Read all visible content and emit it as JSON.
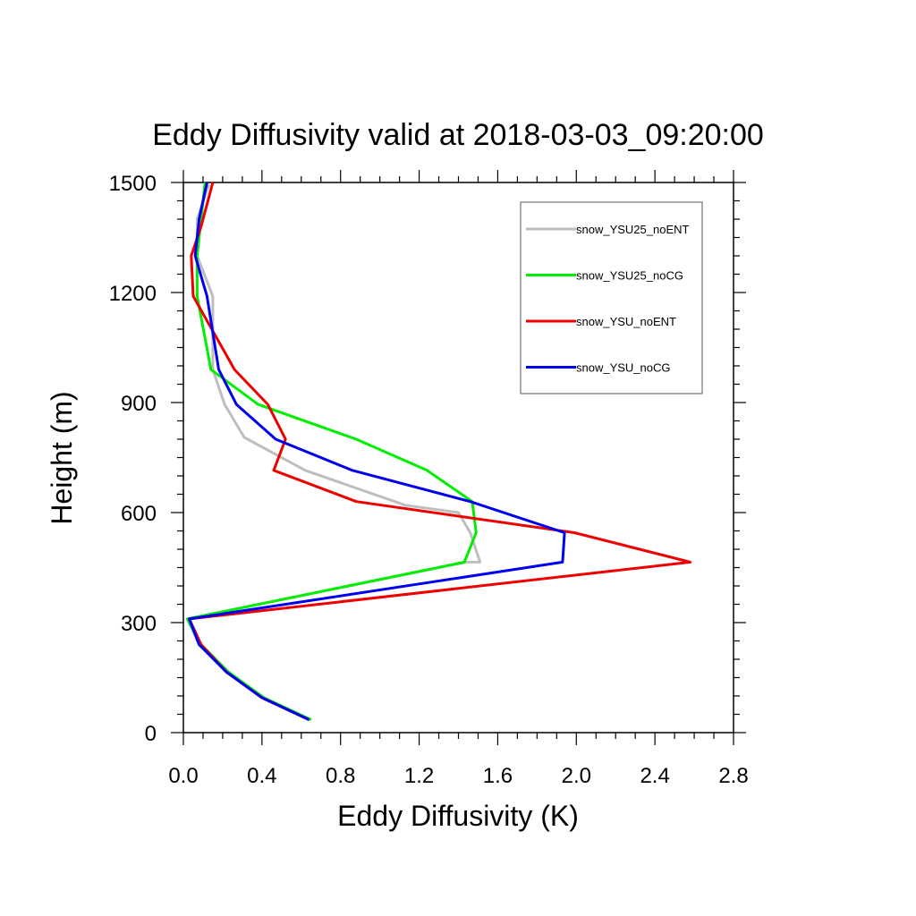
{
  "chart_data": {
    "type": "line",
    "title": "Eddy Diffusivity valid at 2018-03-03_09:20:00",
    "xlabel": "Eddy Diffusivity (K)",
    "ylabel": "Height (m)",
    "xlim": [
      0,
      2.8
    ],
    "ylim": [
      0,
      1500
    ],
    "xticks": [
      0.0,
      0.4,
      0.8,
      1.2,
      1.6,
      2.0,
      2.4,
      2.8
    ],
    "xtick_labels": [
      "0.0",
      "0.4",
      "0.8",
      "1.2",
      "1.6",
      "2.0",
      "2.4",
      "2.8"
    ],
    "yticks": [
      0,
      300,
      600,
      900,
      1200,
      1500
    ],
    "ytick_labels": [
      "0",
      "300",
      "600",
      "900",
      "1200",
      "1500"
    ],
    "grid": false,
    "legend_position": "top-right",
    "series": [
      {
        "name": "snow_YSU25_noENT",
        "color": "#bebebe",
        "points": [
          [
            0.64,
            35
          ],
          [
            0.4,
            95
          ],
          [
            0.22,
            165
          ],
          [
            0.08,
            240
          ],
          [
            0.02,
            310
          ],
          [
            1.44,
            465
          ],
          [
            1.51,
            465
          ],
          [
            1.46,
            545
          ],
          [
            1.4,
            600
          ],
          [
            1.13,
            620
          ],
          [
            0.62,
            715
          ],
          [
            0.31,
            805
          ],
          [
            0.21,
            895
          ],
          [
            0.15,
            990
          ],
          [
            0.15,
            1190
          ],
          [
            0.07,
            1300
          ],
          [
            0.07,
            1400
          ],
          [
            0.13,
            1495
          ]
        ]
      },
      {
        "name": "snow_YSU25_noCG",
        "color": "#00ee00",
        "points": [
          [
            0.65,
            35
          ],
          [
            0.41,
            95
          ],
          [
            0.23,
            165
          ],
          [
            0.09,
            240
          ],
          [
            0.02,
            310
          ],
          [
            1.43,
            465
          ],
          [
            1.49,
            545
          ],
          [
            1.47,
            630
          ],
          [
            1.24,
            715
          ],
          [
            0.88,
            800
          ],
          [
            0.38,
            895
          ],
          [
            0.14,
            990
          ],
          [
            0.07,
            1190
          ],
          [
            0.07,
            1300
          ],
          [
            0.09,
            1400
          ],
          [
            0.11,
            1500
          ]
        ]
      },
      {
        "name": "snow_YSU_noENT",
        "color": "#ee0000",
        "points": [
          [
            0.64,
            35
          ],
          [
            0.4,
            95
          ],
          [
            0.22,
            165
          ],
          [
            0.09,
            240
          ],
          [
            0.03,
            310
          ],
          [
            2.58,
            465
          ],
          [
            1.99,
            545
          ],
          [
            0.88,
            630
          ],
          [
            0.46,
            715
          ],
          [
            0.52,
            800
          ],
          [
            0.43,
            895
          ],
          [
            0.26,
            990
          ],
          [
            0.05,
            1190
          ],
          [
            0.04,
            1300
          ],
          [
            0.09,
            1380
          ],
          [
            0.15,
            1500
          ]
        ]
      },
      {
        "name": "snow_YSU_noCG",
        "color": "#0000ee",
        "points": [
          [
            0.64,
            35
          ],
          [
            0.4,
            95
          ],
          [
            0.22,
            165
          ],
          [
            0.08,
            240
          ],
          [
            0.03,
            310
          ],
          [
            1.93,
            465
          ],
          [
            1.94,
            545
          ],
          [
            1.46,
            630
          ],
          [
            0.86,
            715
          ],
          [
            0.47,
            800
          ],
          [
            0.27,
            895
          ],
          [
            0.18,
            990
          ],
          [
            0.12,
            1190
          ],
          [
            0.06,
            1300
          ],
          [
            0.08,
            1400
          ],
          [
            0.12,
            1500
          ]
        ]
      }
    ]
  }
}
